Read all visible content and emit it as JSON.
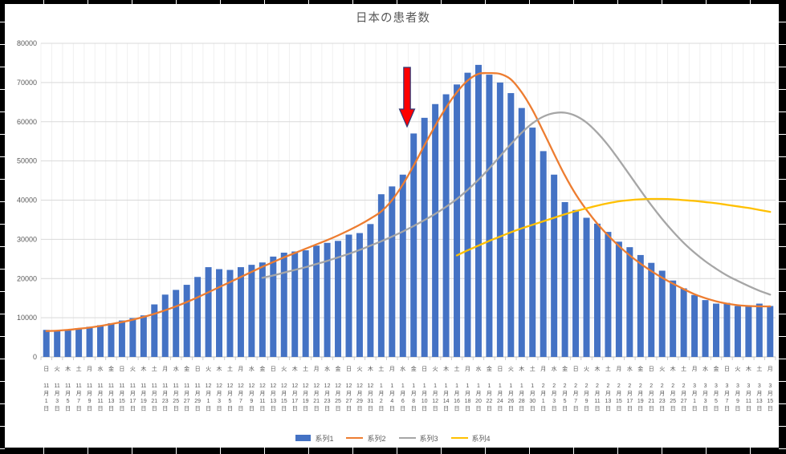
{
  "chart": {
    "title": "日本の患者数",
    "y_axis": {
      "min": 0,
      "max": 80000,
      "step": 10000,
      "tick_labels": [
        "0",
        "10000",
        "20000",
        "30000",
        "40000",
        "50000",
        "60000",
        "70000",
        "80000"
      ]
    },
    "colors": {
      "bar_blue": "#4472c4",
      "line_orange": "#ed7d31",
      "line_gray": "#a6a6a6",
      "line_yellow": "#ffc000",
      "gridline": "#d9d9d9",
      "axis_text": "#595959",
      "arrow_red": "#fe0000",
      "arrow_outline": "#2f3a77"
    }
  },
  "chart_data": {
    "type": "bar",
    "title": "日本の患者数",
    "xlabel": "",
    "ylabel": "",
    "ylim": [
      0,
      80000
    ],
    "y_step": 10000,
    "grid": "horizontal-and-vertical",
    "legend_position": "bottom",
    "categories": [
      "日,11,1",
      "火,11,3",
      "木,11,5",
      "土,11,7",
      "月,11,9",
      "水,11,11",
      "金,11,13",
      "日,11,15",
      "火,11,17",
      "木,11,19",
      "土,11,21",
      "月,11,23",
      "水,11,25",
      "金,11,27",
      "日,11,29",
      "火,12,1",
      "木,12,3",
      "土,12,5",
      "月,12,7",
      "水,12,9",
      "金,12,11",
      "日,12,13",
      "火,12,15",
      "木,12,17",
      "土,12,19",
      "月,12,21",
      "水,12,23",
      "金,12,25",
      "日,12,27",
      "火,12,29",
      "木,12,31",
      "土,1,2",
      "月,1,4",
      "水,1,6",
      "金,1,8",
      "日,1,10",
      "火,1,12",
      "木,1,14",
      "土,1,16",
      "月,1,18",
      "水,1,20",
      "金,1,22",
      "日,1,24",
      "火,1,26",
      "木,1,28",
      "土,1,30",
      "月,2,1",
      "水,2,3",
      "金,2,5",
      "日,2,7",
      "火,2,9",
      "木,2,11",
      "土,2,13",
      "月,2,15",
      "水,2,17",
      "金,2,19",
      "日,2,21",
      "火,2,23",
      "木,2,25",
      "土,2,27",
      "月,3,1",
      "水,3,3",
      "金,3,5",
      "日,3,7",
      "火,3,9",
      "木,3,11",
      "土,3,13",
      "月,3,15"
    ],
    "series": [
      {
        "name": "系列1",
        "type": "bar",
        "color": "#4472c4",
        "values": [
          6900,
          6750,
          7000,
          7200,
          7700,
          8100,
          8600,
          9300,
          9900,
          10600,
          13400,
          15900,
          17100,
          18400,
          20400,
          22900,
          22400,
          22200,
          22900,
          23500,
          24100,
          25600,
          26600,
          26900,
          27200,
          28400,
          29100,
          29600,
          31200,
          31600,
          33900,
          41500,
          43500,
          46500,
          57000,
          61000,
          64500,
          67000,
          69500,
          72500,
          74500,
          72000,
          70000,
          67300,
          63500,
          58500,
          52500,
          46500,
          39500,
          37500,
          35500,
          34000,
          31900,
          29400,
          28000,
          26000,
          24000,
          22000,
          19500,
          17500,
          15800,
          14500,
          13600,
          13800,
          13000,
          13200,
          13600,
          13000
        ]
      },
      {
        "name": "系列2",
        "type": "line",
        "color": "#ed7d31",
        "values": [
          6600,
          6700,
          6900,
          7200,
          7500,
          7900,
          8400,
          8900,
          9500,
          10200,
          11000,
          11900,
          12900,
          14000,
          15200,
          16500,
          17800,
          19100,
          20400,
          21700,
          23000,
          24200,
          25400,
          26500,
          27600,
          28700,
          29800,
          31000,
          32300,
          33700,
          35300,
          37100,
          40000,
          44000,
          48800,
          54000,
          59000,
          63600,
          67500,
          70500,
          72200,
          72400,
          72200,
          70800,
          67500,
          63000,
          57500,
          51800,
          46300,
          41500,
          37500,
          34000,
          31000,
          28300,
          25900,
          23800,
          21900,
          20200,
          18700,
          17300,
          16000,
          15000,
          14200,
          13600,
          13200,
          13000,
          12900,
          12900
        ]
      },
      {
        "name": "系列3",
        "type": "line",
        "color": "#a6a6a6",
        "values": [
          null,
          null,
          null,
          null,
          null,
          null,
          null,
          null,
          null,
          null,
          null,
          null,
          null,
          null,
          null,
          null,
          null,
          null,
          null,
          null,
          20200,
          20800,
          21500,
          22200,
          22900,
          23700,
          24500,
          25400,
          26300,
          27300,
          28400,
          29500,
          30700,
          32000,
          33400,
          34900,
          36500,
          38300,
          40300,
          42600,
          45200,
          48100,
          51200,
          54300,
          57200,
          59600,
          61300,
          62200,
          62300,
          61500,
          59800,
          57200,
          54000,
          50300,
          46400,
          42500,
          38700,
          35200,
          32000,
          29100,
          26600,
          24400,
          22500,
          20800,
          19400,
          18100,
          16900,
          15900
        ]
      },
      {
        "name": "系列4",
        "type": "line",
        "color": "#ffc000",
        "values": [
          null,
          null,
          null,
          null,
          null,
          null,
          null,
          null,
          null,
          null,
          null,
          null,
          null,
          null,
          null,
          null,
          null,
          null,
          null,
          null,
          null,
          null,
          null,
          null,
          null,
          null,
          null,
          null,
          null,
          null,
          null,
          null,
          null,
          null,
          null,
          null,
          null,
          null,
          25900,
          27200,
          28400,
          29600,
          30700,
          31800,
          32800,
          33700,
          34600,
          35500,
          36400,
          37200,
          37900,
          38600,
          39200,
          39700,
          40000,
          40200,
          40300,
          40300,
          40200,
          40000,
          39800,
          39500,
          39200,
          38800,
          38400,
          38000,
          37500,
          37000
        ]
      }
    ],
    "annotation": {
      "type": "down-arrow",
      "color": "#fe0000",
      "outline": "#2f3a77",
      "points_at_category_index": 34,
      "x": 507,
      "y_top": 84,
      "y_tip": 158
    }
  }
}
